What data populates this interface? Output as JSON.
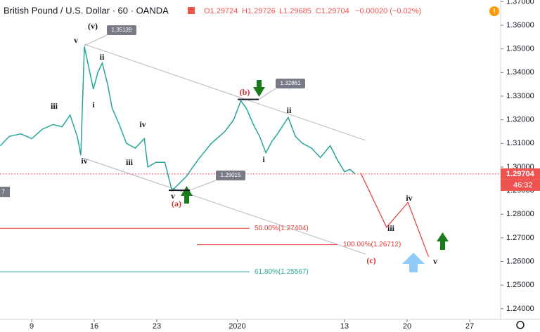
{
  "header": {
    "symbol": "British Pound / U.S. Dollar · 60 · OANDA",
    "open": "O1.29724",
    "high": "H1.29726",
    "low": "L1.29685",
    "close": "C1.29704",
    "change": "−0.00020 (−0.02%)"
  },
  "chart_data": {
    "type": "line",
    "color": "#26a69a",
    "x": [
      5.5,
      6.5,
      7.8,
      9,
      10.2,
      11.4,
      12.4,
      13.3,
      14.1,
      14.5,
      14.9,
      15.4,
      15.9,
      16.4,
      16.9,
      17.5,
      18.0,
      18.8,
      19.6,
      20.6,
      21.6,
      22.0,
      22.9,
      23.9,
      24.7,
      25.5,
      26.3,
      27.6,
      29.1,
      30.6,
      31.6,
      32.4,
      33.0,
      33.8,
      34.5,
      35.2,
      35.9,
      36.5,
      37.7,
      38.5,
      39.3,
      40.3,
      41.3,
      42.4,
      43.2,
      44.0,
      44.6,
      45.2
    ],
    "values": [
      1.309,
      1.313,
      1.314,
      1.312,
      1.316,
      1.318,
      1.317,
      1.322,
      1.313,
      1.305,
      1.351,
      1.342,
      1.333,
      1.34,
      1.344,
      1.335,
      1.325,
      1.318,
      1.31,
      1.308,
      1.312,
      1.3,
      1.302,
      1.302,
      1.29,
      1.293,
      1.296,
      1.303,
      1.31,
      1.315,
      1.32,
      1.328,
      1.325,
      1.318,
      1.313,
      1.306,
      1.311,
      1.314,
      1.321,
      1.313,
      1.31,
      1.308,
      1.304,
      1.309,
      1.303,
      1.298,
      1.299,
      1.297
    ],
    "projection": {
      "color": "#e53935",
      "x": [
        45.8,
        48.7,
        51.1,
        53.4
      ],
      "values": [
        1.2975,
        1.2745,
        1.285,
        1.262
      ]
    },
    "xlim": [
      5.46,
      61.46
    ],
    "xticks": [
      9,
      16,
      23,
      {
        "value": 32,
        "label": "2020"
      },
      {
        "value": 44,
        "label": "13"
      },
      {
        "value": 51,
        "label": "20"
      },
      {
        "value": 58,
        "label": "27"
      }
    ],
    "ylim": [
      1.2355,
      1.3707
    ],
    "yticks": [
      {
        "value": 1.24,
        "label": "1.24000"
      },
      {
        "value": 1.25,
        "label": "1.25000"
      },
      {
        "value": 1.26,
        "label": "1.26000"
      },
      {
        "value": 1.27,
        "label": "1.27000"
      },
      {
        "value": 1.28,
        "label": "1.28000"
      },
      {
        "value": 1.29,
        "label": "1.29000"
      },
      {
        "value": 1.3,
        "label": "1.30000"
      },
      {
        "value": 1.31,
        "label": "1.31000"
      },
      {
        "value": 1.32,
        "label": "1.32000"
      },
      {
        "value": 1.33,
        "label": "1.33000"
      },
      {
        "value": 1.34,
        "label": "1.34000"
      },
      {
        "value": 1.35,
        "label": "1.35000"
      },
      {
        "value": 1.36,
        "label": "1.36000"
      },
      {
        "value": 1.37,
        "label": "1.37000"
      }
    ],
    "last_price": {
      "value": 1.29704,
      "label": "1.29704"
    },
    "countdown": "46:32",
    "left_tag": "7",
    "price_callouts": [
      {
        "value": 1.35139,
        "label": "1.35139"
      },
      {
        "value": 1.32861,
        "label": "1.32861"
      },
      {
        "value": 1.29015,
        "label": "1.29015"
      }
    ],
    "fib_levels": [
      {
        "value": 1.27404,
        "label": "50.00%(1.27404)",
        "color": "#e53935"
      },
      {
        "value": 1.26712,
        "label": "100.00%(1.26712)",
        "color": "#e53935"
      },
      {
        "value": 1.25567,
        "label": "61.80%(1.25567)",
        "color": "#26a69a"
      }
    ],
    "wave_labels": [
      "(v)",
      "v",
      "ii",
      "i",
      "iii",
      "iv",
      "iv",
      "iii",
      "v",
      "(a)",
      "(b)",
      "ii",
      "i",
      "iii",
      "iv",
      "v",
      "(c)"
    ]
  }
}
